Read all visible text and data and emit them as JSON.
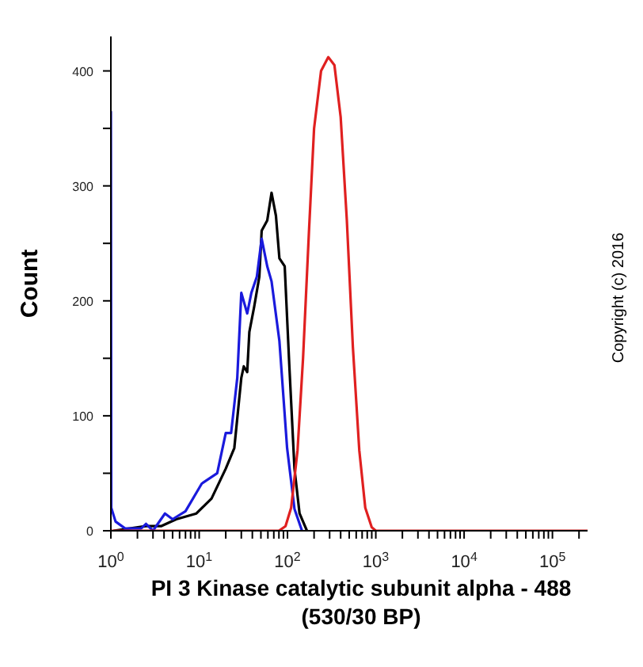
{
  "chart_data": {
    "type": "line",
    "xlabel": "PI 3 Kinase catalytic subunit alpha - 488 (530/30 BP)",
    "ylabel": "Count",
    "annotations": [
      "Copyright (c) 2016"
    ],
    "log": "x",
    "marker": "none",
    "line_style": "solid",
    "xlim": [
      1,
      250000
    ],
    "xticks": [
      {
        "value": 1,
        "label": "10$^{0}$"
      },
      {
        "value": 2,
        "label": null
      },
      {
        "value": 3,
        "label": null
      },
      {
        "value": 4,
        "label": null
      },
      {
        "value": 5,
        "label": null
      },
      {
        "value": 6,
        "label": null
      },
      {
        "value": 7,
        "label": null
      },
      {
        "value": 8,
        "label": null
      },
      {
        "value": 9,
        "label": null
      },
      {
        "value": 10,
        "label": "10$^{1}$"
      },
      {
        "value": 20,
        "label": null
      },
      {
        "value": 30,
        "label": null
      },
      {
        "value": 40,
        "label": null
      },
      {
        "value": 50,
        "label": null
      },
      {
        "value": 60,
        "label": null
      },
      {
        "value": 70,
        "label": null
      },
      {
        "value": 80,
        "label": null
      },
      {
        "value": 90,
        "label": null
      },
      {
        "value": 100,
        "label": "10$^{2}$"
      },
      {
        "value": 200,
        "label": null
      },
      {
        "value": 300,
        "label": null
      },
      {
        "value": 400,
        "label": null
      },
      {
        "value": 500,
        "label": null
      },
      {
        "value": 600,
        "label": null
      },
      {
        "value": 700,
        "label": null
      },
      {
        "value": 800,
        "label": null
      },
      {
        "value": 900,
        "label": null
      },
      {
        "value": 1000,
        "label": "10$^{3}$"
      },
      {
        "value": 2000,
        "label": null
      },
      {
        "value": 3000,
        "label": null
      },
      {
        "value": 4000,
        "label": null
      },
      {
        "value": 5000,
        "label": null
      },
      {
        "value": 6000,
        "label": null
      },
      {
        "value": 7000,
        "label": null
      },
      {
        "value": 8000,
        "label": null
      },
      {
        "value": 9000,
        "label": null
      },
      {
        "value": 10000,
        "label": "10$^{4}$"
      },
      {
        "value": 20000,
        "label": null
      },
      {
        "value": 30000,
        "label": null
      },
      {
        "value": 40000,
        "label": null
      },
      {
        "value": 50000,
        "label": null
      },
      {
        "value": 60000,
        "label": null
      },
      {
        "value": 70000,
        "label": null
      },
      {
        "value": 80000,
        "label": null
      },
      {
        "value": 90000,
        "label": null
      },
      {
        "value": 100000,
        "label": "10$^{5}$"
      },
      {
        "value": 200000,
        "label": null
      }
    ],
    "ylim": [
      0,
      430
    ],
    "yticks": [
      0,
      {
        "value": 50,
        "label": null
      },
      100,
      {
        "value": 150,
        "label": null
      },
      200,
      {
        "value": 250,
        "label": null
      },
      300,
      {
        "value": 350,
        "label": null
      },
      400
    ],
    "series": [
      {
        "color": "#000000",
        "x": [
          1.07,
          2.5,
          3.7,
          5.5,
          9.3,
          13.8,
          20,
          25,
          30,
          32,
          35,
          37,
          42,
          48,
          51,
          59,
          66,
          74,
          81,
          93,
          105,
          120,
          137,
          166
        ],
        "values": [
          0,
          4,
          4,
          10,
          15,
          28,
          54,
          72,
          133,
          143,
          138,
          173,
          195,
          221,
          261,
          270,
          294,
          274,
          237,
          230,
          143,
          54,
          15,
          0
        ]
      },
      {
        "color": "#1a1adc",
        "x": [
          1,
          1.01,
          1.13,
          1.45,
          2.2,
          2.5,
          3,
          4.1,
          5,
          7,
          10.7,
          16,
          20,
          23,
          27,
          30,
          35,
          39,
          45,
          51,
          59,
          66,
          81,
          99,
          120,
          146
        ],
        "values": [
          365,
          20,
          8,
          2,
          2,
          6,
          0,
          15,
          10,
          17,
          41,
          50,
          85,
          85,
          133,
          207,
          189,
          207,
          221,
          254,
          230,
          217,
          165,
          72,
          19,
          0
        ]
      },
      {
        "color": "#e02020",
        "x": [
          1,
          80,
          95,
          110,
          130,
          150,
          175,
          200,
          240,
          290,
          340,
          400,
          470,
          550,
          650,
          760,
          900,
          1000,
          250000
        ],
        "values": [
          0,
          0,
          4,
          20,
          70,
          150,
          260,
          350,
          400,
          412,
          405,
          360,
          270,
          160,
          70,
          20,
          3,
          0,
          0
        ]
      }
    ]
  }
}
